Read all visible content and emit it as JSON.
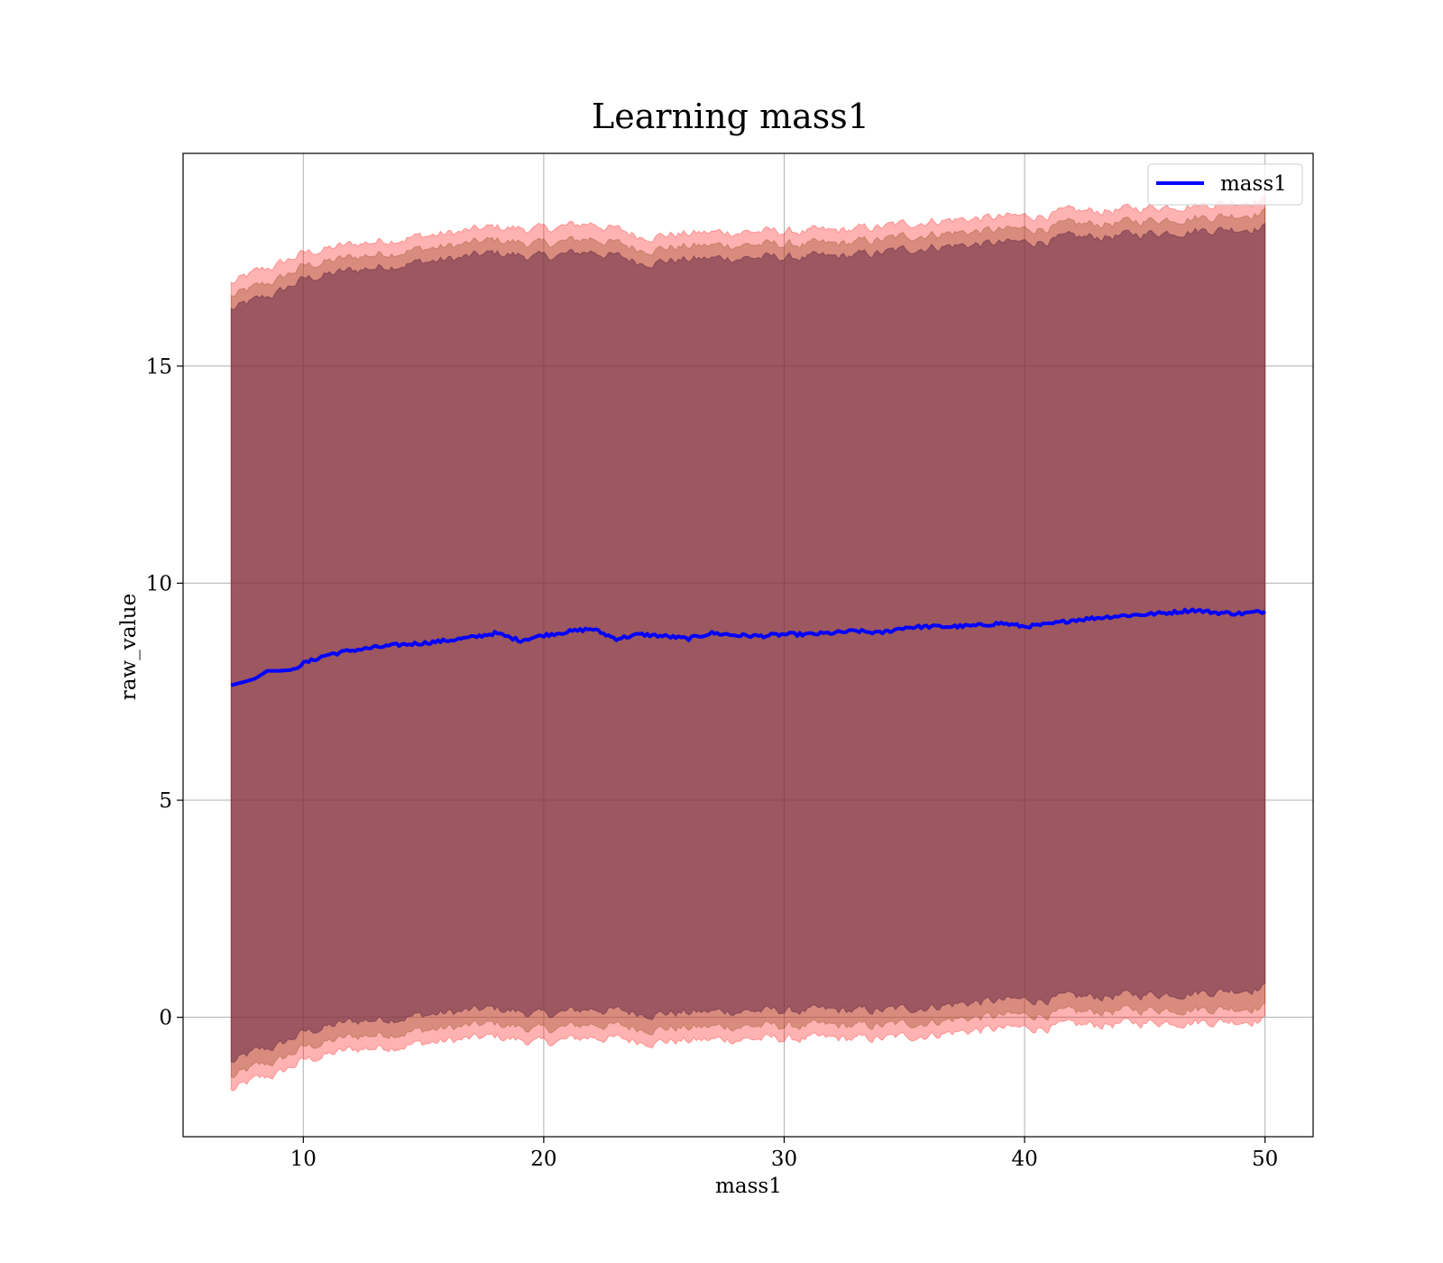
{
  "chart_data": {
    "type": "area",
    "title": "Learning mass1",
    "xlabel": "mass1",
    "ylabel": "raw_value",
    "xlim": [
      5,
      52
    ],
    "ylim": [
      -2.75,
      19.9
    ],
    "xticks": [
      10,
      20,
      30,
      40,
      50
    ],
    "yticks": [
      0,
      5,
      10,
      15
    ],
    "grid": true,
    "legend_position": "top-right",
    "series": [
      {
        "name": "mass1",
        "kind": "line",
        "color": "#0000ff",
        "x": [
          7,
          7.5,
          8,
          8.5,
          9,
          9.5,
          10,
          11,
          12,
          13,
          14,
          15,
          16,
          17,
          18,
          19,
          20,
          21,
          22,
          23,
          24,
          25,
          26,
          27,
          28,
          29,
          30,
          31,
          32,
          33,
          34,
          35,
          36,
          37,
          38,
          39,
          40,
          41,
          42,
          43,
          44,
          45,
          46,
          47,
          48,
          49,
          50
        ],
        "y": [
          7.65,
          7.72,
          7.8,
          7.98,
          7.98,
          8.0,
          8.15,
          8.35,
          8.45,
          8.52,
          8.58,
          8.62,
          8.68,
          8.75,
          8.85,
          8.68,
          8.8,
          8.88,
          8.95,
          8.72,
          8.82,
          8.78,
          8.72,
          8.85,
          8.8,
          8.78,
          8.82,
          8.82,
          8.85,
          8.9,
          8.85,
          8.98,
          9.0,
          9.0,
          9.02,
          9.08,
          9.0,
          9.05,
          9.15,
          9.2,
          9.25,
          9.28,
          9.32,
          9.38,
          9.32,
          9.3,
          9.35
        ]
      },
      {
        "name": "",
        "kind": "band",
        "color": "#ff0000",
        "opacity": 0.3,
        "x": [
          7,
          8,
          9,
          10,
          12,
          14,
          16,
          18,
          20,
          22,
          24,
          26,
          28,
          30,
          32,
          34,
          36,
          38,
          40,
          42,
          44,
          46,
          48,
          50
        ],
        "upper": [
          16.9,
          17.15,
          17.35,
          17.6,
          17.8,
          17.95,
          18.05,
          18.2,
          18.15,
          18.3,
          18.0,
          18.05,
          18.1,
          18.1,
          18.1,
          18.2,
          18.35,
          18.4,
          18.45,
          18.55,
          18.6,
          18.7,
          18.75,
          18.85
        ],
        "lower": [
          -1.7,
          -1.45,
          -1.3,
          -1.0,
          -0.75,
          -0.65,
          -0.55,
          -0.45,
          -0.6,
          -0.45,
          -0.55,
          -0.55,
          -0.5,
          -0.5,
          -0.5,
          -0.5,
          -0.4,
          -0.3,
          -0.25,
          -0.2,
          -0.15,
          -0.1,
          -0.1,
          -0.05
        ]
      },
      {
        "name": "",
        "kind": "band",
        "color": "#a0522d",
        "opacity": 0.4,
        "x": [
          7,
          8,
          9,
          10,
          12,
          14,
          16,
          18,
          20,
          22,
          24,
          26,
          28,
          30,
          32,
          34,
          36,
          38,
          40,
          42,
          44,
          46,
          48,
          50
        ],
        "upper": [
          16.6,
          16.8,
          17.0,
          17.3,
          17.5,
          17.65,
          17.75,
          17.9,
          17.8,
          17.95,
          17.7,
          17.75,
          17.8,
          17.8,
          17.8,
          17.9,
          18.05,
          18.1,
          18.15,
          18.25,
          18.3,
          18.4,
          18.45,
          18.55
        ],
        "lower": [
          -1.4,
          -1.15,
          -1.0,
          -0.7,
          -0.45,
          -0.35,
          -0.25,
          -0.15,
          -0.3,
          -0.15,
          -0.25,
          -0.25,
          -0.2,
          -0.2,
          -0.2,
          -0.2,
          -0.1,
          0.0,
          0.05,
          0.1,
          0.15,
          0.2,
          0.2,
          0.25
        ]
      },
      {
        "name": "",
        "kind": "band",
        "color": "#6a2c48",
        "opacity": 0.55,
        "x": [
          7,
          8,
          9,
          10,
          12,
          14,
          16,
          18,
          20,
          22,
          24,
          26,
          28,
          30,
          32,
          34,
          36,
          38,
          40,
          42,
          44,
          46,
          48,
          50
        ],
        "upper": [
          16.3,
          16.5,
          16.7,
          17.0,
          17.2,
          17.35,
          17.45,
          17.6,
          17.5,
          17.65,
          17.4,
          17.45,
          17.5,
          17.5,
          17.5,
          17.6,
          17.75,
          17.8,
          17.85,
          17.95,
          18.0,
          18.1,
          18.15,
          18.2
        ],
        "lower": [
          -1.05,
          -0.8,
          -0.65,
          -0.35,
          -0.1,
          0.0,
          0.1,
          0.2,
          0.05,
          0.2,
          0.1,
          0.1,
          0.15,
          0.15,
          0.15,
          0.15,
          0.25,
          0.35,
          0.4,
          0.45,
          0.5,
          0.55,
          0.6,
          0.7
        ]
      }
    ]
  }
}
